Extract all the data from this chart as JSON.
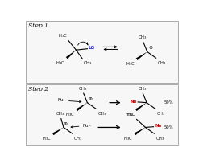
{
  "step1_label": "Step 1",
  "step2_label": "Step 2",
  "bg_color": "#ffffff",
  "lg_color": "#2222cc",
  "nu_color": "#cc0000",
  "text_color": "#111111",
  "box_edge": "#aaaaaa",
  "box_face": "#f7f7f7",
  "percent_59": "59%",
  "percent_50": "50%",
  "fs_label": 5.5,
  "fs_text": 4.2,
  "fs_sub": 3.8
}
